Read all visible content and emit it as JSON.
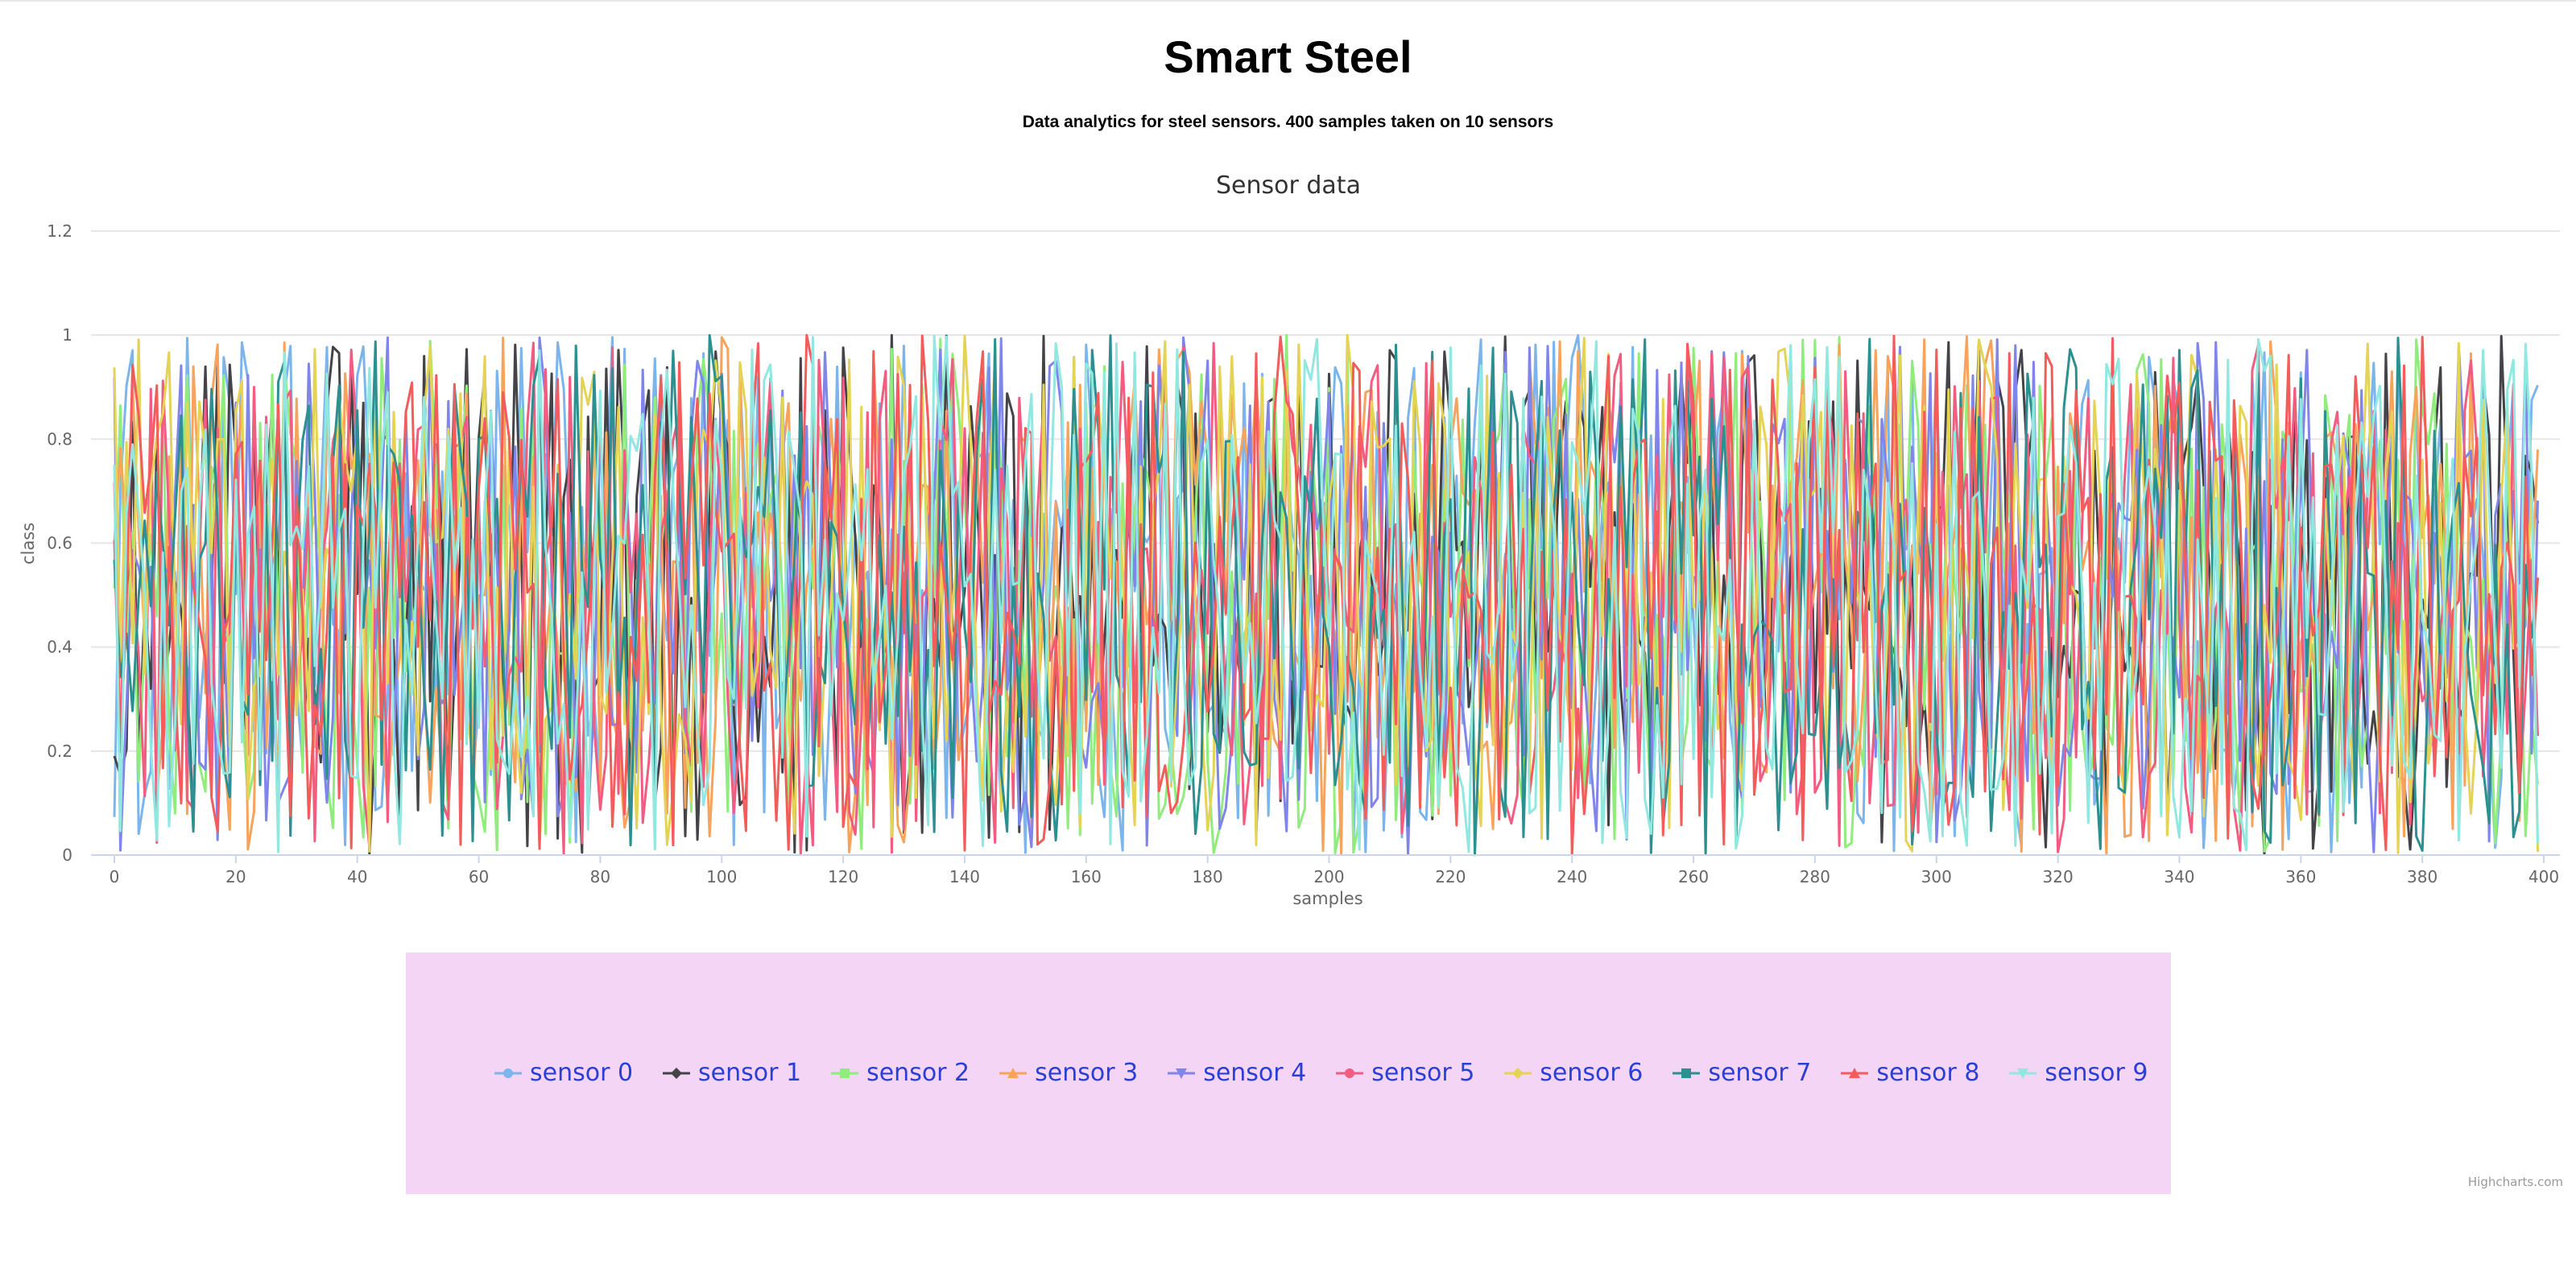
{
  "page": {
    "title": "Smart Steel",
    "subtitle": "Data analytics for steel sensors. 400 samples taken on 10 sensors",
    "credits": "Highcharts.com"
  },
  "chart_data": {
    "type": "line",
    "title": "Sensor data",
    "xlabel": "samples",
    "ylabel": "class",
    "xlim": [
      0,
      400
    ],
    "ylim": [
      0,
      1.2
    ],
    "x_ticks": [
      "0",
      "20",
      "40",
      "60",
      "80",
      "100",
      "120",
      "140",
      "160",
      "180",
      "200",
      "220",
      "240",
      "260",
      "280",
      "300",
      "320",
      "340",
      "360",
      "380",
      "400"
    ],
    "y_ticks": [
      "0",
      "0.2",
      "0.4",
      "0.6",
      "0.8",
      "1",
      "1.2"
    ],
    "grid": true,
    "legend_position": "bottom",
    "n_points": 400,
    "series": [
      {
        "name": "sensor 0",
        "color": "#7cb5ec",
        "marker": "circle"
      },
      {
        "name": "sensor 1",
        "color": "#434348",
        "marker": "diamond"
      },
      {
        "name": "sensor 2",
        "color": "#90ed7d",
        "marker": "square"
      },
      {
        "name": "sensor 3",
        "color": "#f7a35c",
        "marker": "triangle"
      },
      {
        "name": "sensor 4",
        "color": "#8085e9",
        "marker": "triangle-down"
      },
      {
        "name": "sensor 5",
        "color": "#f15c80",
        "marker": "circle"
      },
      {
        "name": "sensor 6",
        "color": "#e4d354",
        "marker": "diamond"
      },
      {
        "name": "sensor 7",
        "color": "#2b908f",
        "marker": "square"
      },
      {
        "name": "sensor 8",
        "color": "#f45b5b",
        "marker": "triangle"
      },
      {
        "name": "sensor 9",
        "color": "#91e8e1",
        "marker": "triangle-down"
      }
    ]
  }
}
